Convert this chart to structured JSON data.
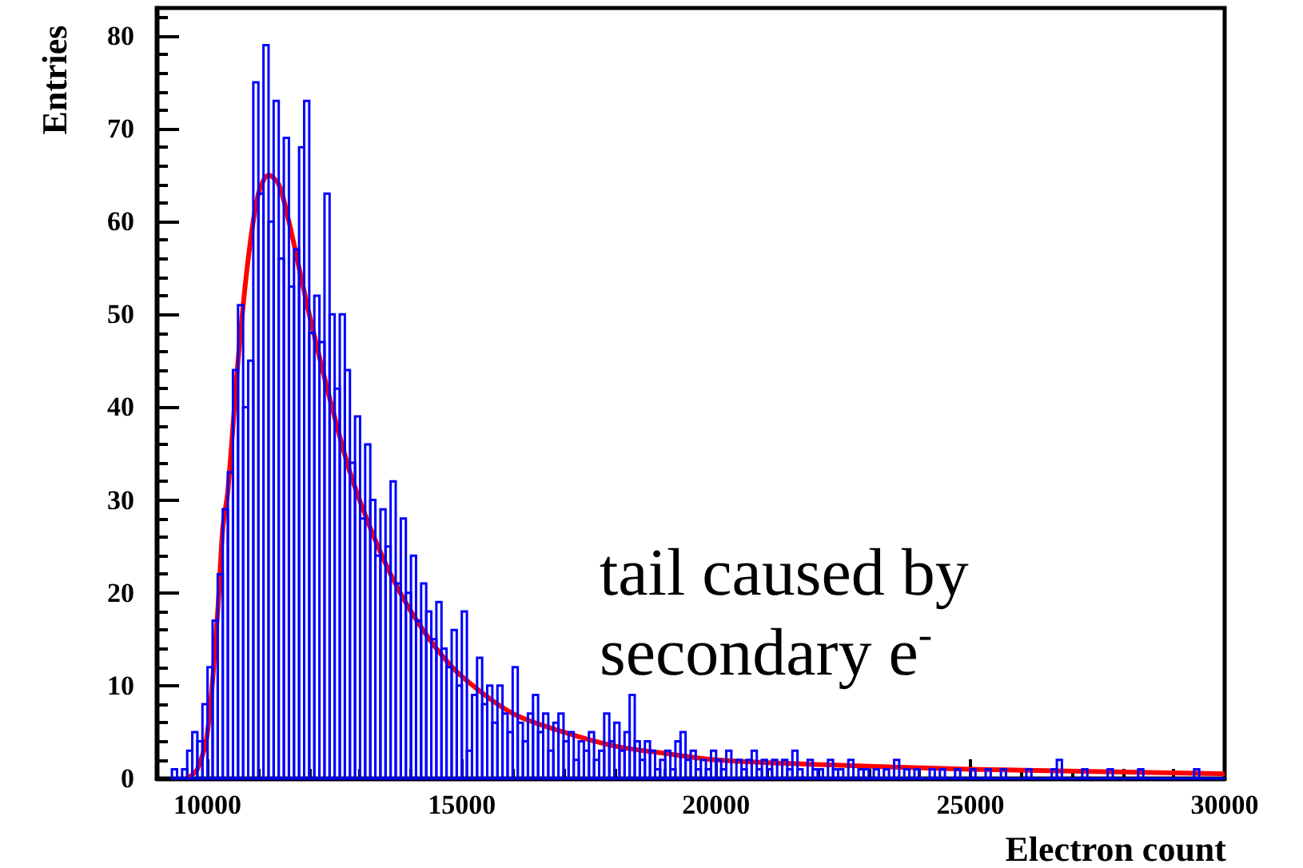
{
  "chart_data": {
    "type": "histogram",
    "xlabel": "Electron count",
    "ylabel": "Entries",
    "xlim": [
      9000,
      30000
    ],
    "ylim": [
      0,
      83
    ],
    "xticks": [
      10000,
      15000,
      20000,
      25000,
      30000
    ],
    "yticks": [
      0,
      10,
      20,
      30,
      40,
      50,
      60,
      70,
      80
    ],
    "grid": false,
    "color": "#0000ff",
    "bins": [
      9300,
      9400,
      9500,
      9600,
      9700,
      9800,
      9900,
      10000,
      10100,
      10200,
      10300,
      10400,
      10500,
      10600,
      10700,
      10800,
      10900,
      11000,
      11100,
      11200,
      11300,
      11400,
      11500,
      11600,
      11700,
      11800,
      11900,
      12000,
      12100,
      12200,
      12300,
      12400,
      12500,
      12600,
      12700,
      12800,
      12900,
      13000,
      13100,
      13200,
      13300,
      13400,
      13500,
      13600,
      13700,
      13800,
      13900,
      14000,
      14100,
      14200,
      14300,
      14400,
      14500,
      14600,
      14700,
      14800,
      14900,
      15000,
      15100,
      15200,
      15300,
      15400,
      15500,
      15600,
      15700,
      15800,
      15900,
      16000,
      16100,
      16200,
      16300,
      16400,
      16500,
      16600,
      16700,
      16800,
      16900,
      17000,
      17100,
      17200,
      17300,
      17400,
      17500,
      17600,
      17700,
      17800,
      17900,
      18000,
      18100,
      18200,
      18300,
      18400,
      18500,
      18600,
      18700,
      18800,
      18900,
      19000,
      19100,
      19200,
      19300,
      19400,
      19500,
      19600,
      19700,
      19800,
      19900,
      20000,
      20100,
      20200,
      20300,
      20400,
      20500,
      20600,
      20700,
      20800,
      20900,
      21000,
      21100,
      21200,
      21300,
      21400,
      21500,
      21600,
      21700,
      21800,
      21900,
      22000,
      22100,
      22200,
      22300,
      22400,
      22500,
      22600,
      22700,
      22800,
      22900,
      23000,
      23100,
      23200,
      23300,
      23400,
      23500,
      23600,
      23700,
      23800,
      23900,
      24000,
      24100,
      24200,
      24300,
      24400,
      24500,
      24600,
      24700,
      24800,
      24900,
      25000,
      25100,
      25200,
      25300,
      25400,
      25500,
      25600,
      25700,
      25800,
      25900,
      26000,
      26100,
      26200,
      26300,
      26400,
      26500,
      26600,
      26700,
      26800,
      26900,
      27000,
      27100,
      27200,
      27300,
      27400,
      27500,
      27600,
      27700,
      27800,
      27900,
      28000,
      28100,
      28200,
      28300,
      28400,
      28500,
      28600,
      28700,
      28800,
      28900,
      29000,
      29100,
      29200,
      29300,
      29400,
      29500,
      29600,
      29700,
      29800,
      29900,
      30000
    ],
    "values": [
      1,
      0,
      1,
      3,
      5,
      4,
      8,
      12,
      17,
      22,
      29,
      33,
      44,
      51,
      40,
      45,
      75,
      63,
      79,
      60,
      73,
      56,
      69,
      53,
      57,
      68,
      73,
      48,
      52,
      47,
      63,
      50,
      42,
      50,
      44,
      34,
      39,
      28,
      36,
      30,
      24,
      29,
      25,
      32,
      21,
      28,
      20,
      24,
      17,
      21,
      18,
      15,
      19,
      14,
      12,
      16,
      10,
      18,
      3,
      9,
      13,
      8,
      10,
      6,
      10,
      7,
      5,
      12,
      6,
      4,
      7,
      9,
      5,
      7,
      3,
      6,
      7,
      4,
      5,
      2,
      4,
      3,
      5,
      2,
      3,
      7,
      4,
      6,
      3,
      5,
      9,
      4,
      2,
      4,
      3,
      1,
      2,
      3,
      1,
      4,
      5,
      2,
      3,
      1,
      2,
      1,
      3,
      2,
      1,
      3,
      0,
      2,
      1,
      2,
      3,
      1,
      2,
      1,
      2,
      0,
      2,
      1,
      3,
      1,
      0,
      2,
      1,
      1,
      0,
      2,
      1,
      1,
      0,
      2,
      0,
      1,
      1,
      0,
      1,
      0,
      1,
      0,
      2,
      0,
      1,
      0,
      1,
      0,
      0,
      1,
      0,
      1,
      0,
      0,
      1,
      0,
      0,
      1,
      0,
      0,
      1,
      0,
      0,
      1,
      0,
      0,
      0,
      0,
      1,
      0,
      0,
      0,
      0,
      1,
      2,
      0,
      0,
      0,
      0,
      1,
      0,
      0,
      0,
      0,
      1,
      0,
      0,
      0,
      0,
      0,
      1,
      0,
      0,
      0,
      0,
      0,
      0,
      0,
      0,
      0,
      0,
      1,
      0,
      0,
      0,
      0,
      0
    ],
    "series": [
      {
        "type": "line",
        "color": "#ff0000",
        "x": [
          9600,
          9800,
          10000,
          10200,
          10300,
          10400,
          10600,
          10800,
          11000,
          11200,
          11400,
          11600,
          11800,
          12000,
          12400,
          12800,
          13200,
          13600,
          14000,
          14500,
          15000,
          16000,
          17000,
          18000,
          19000,
          20000,
          22000,
          25000,
          30000
        ],
        "values": [
          0,
          1,
          5,
          18,
          27,
          31,
          45,
          56,
          63,
          65,
          64,
          60,
          55,
          50,
          41,
          33,
          27,
          22,
          18,
          14,
          11,
          7,
          5,
          3.5,
          2.7,
          2,
          1.5,
          1,
          0.5
        ]
      }
    ],
    "annotations": [
      "tail caused by secondary e$^{-}$"
    ]
  }
}
